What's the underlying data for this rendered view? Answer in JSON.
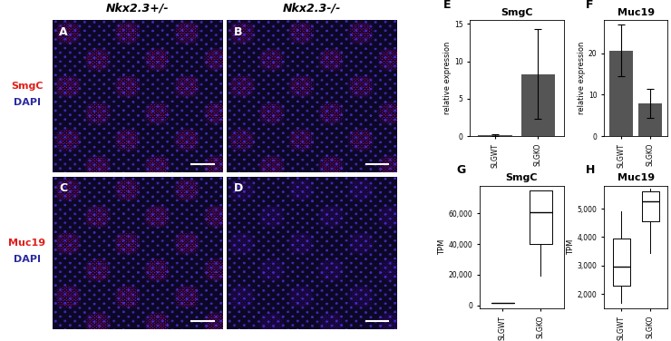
{
  "figure_panels": {
    "columns": [
      "Nkx2.3+/-",
      "Nkx2.3-/-"
    ],
    "rows": [
      {
        "labels": [
          {
            "text": "SmgC",
            "color": "#e0201b"
          },
          {
            "text": "DAPI",
            "color": "#2a2aa0"
          }
        ],
        "panels": [
          "A",
          "B"
        ]
      },
      {
        "labels": [
          {
            "text": "Muc19",
            "color": "#e0201b"
          },
          {
            "text": "DAPI",
            "color": "#2a2aa0"
          }
        ],
        "panels": [
          "C",
          "D"
        ]
      }
    ]
  },
  "chart_data": [
    {
      "type": "bar",
      "annotations": [
        "E"
      ],
      "title": "SmgC",
      "y_label": "relative expression",
      "categories": [
        "SLGWT",
        "SLGKO"
      ],
      "values": [
        0.1,
        8.3
      ],
      "errors": [
        0.1,
        6.0
      ],
      "color": "#555555",
      "ylim": [
        0,
        15.5
      ],
      "yticks": [
        0,
        5,
        10,
        15
      ]
    },
    {
      "type": "bar",
      "annotations": [
        "F"
      ],
      "title": "Muc19",
      "y_label": "relative expression",
      "categories": [
        "SLGWT",
        "SLGKO"
      ],
      "values": [
        20.7,
        7.8
      ],
      "errors": [
        6.3,
        3.5
      ],
      "color": "#555555",
      "ylim": [
        0,
        28
      ],
      "yticks": [
        0,
        10,
        20
      ]
    },
    {
      "type": "box",
      "annotations": [
        "G"
      ],
      "title": "SmgC",
      "y_label": "TPM",
      "categories": [
        "SLGWT",
        "SLGKO"
      ],
      "boxes": [
        {
          "whislo": 1500,
          "q1": 1500,
          "med": 1500,
          "q3": 1500,
          "whishi": 1500
        },
        {
          "whislo": 19000,
          "q1": 40000,
          "med": 60500,
          "q3": 75000,
          "whishi": 75000
        }
      ],
      "ylim": [
        -2000,
        78000
      ],
      "yticks": [
        0,
        {
          "value": 20000,
          "label": "20,000"
        },
        {
          "value": 40000,
          "label": "40,000"
        },
        {
          "value": 60000,
          "label": "60,000"
        }
      ]
    },
    {
      "type": "box",
      "annotations": [
        "H"
      ],
      "title": "Muc19",
      "y_label": "TPM",
      "categories": [
        "SLGWT",
        "SLGKO"
      ],
      "boxes": [
        {
          "whislo": 1700,
          "q1": 2300,
          "med": 2950,
          "q3": 3950,
          "whishi": 4900
        },
        {
          "whislo": 3450,
          "q1": 4550,
          "med": 5250,
          "q3": 5600,
          "whishi": 5700
        }
      ],
      "ylim": [
        1500,
        5800
      ],
      "yticks": [
        {
          "value": 2000,
          "label": "2,000"
        },
        {
          "value": 3000,
          "label": "3,000"
        },
        {
          "value": 4000,
          "label": "4,000"
        },
        {
          "value": 5000,
          "label": "5,000"
        }
      ]
    }
  ]
}
